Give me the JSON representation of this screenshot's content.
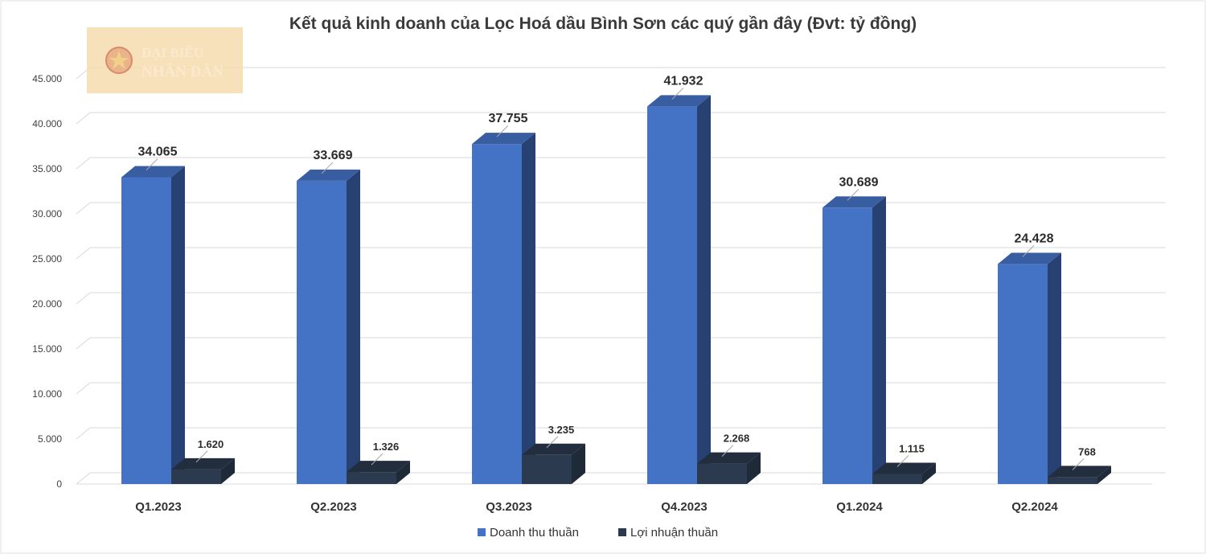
{
  "chart_data": {
    "type": "bar",
    "title": "Kết quả kinh doanh của Lọc Hoá dầu Bình Sơn các quý gần đây (Đvt: tỷ đồng)",
    "xlabel": "",
    "ylabel": "",
    "categories": [
      "Q1.2023",
      "Q2.2023",
      "Q3.2023",
      "Q4.2023",
      "Q1.2024",
      "Q2.2024"
    ],
    "series": [
      {
        "name": "Doanh thu thuần",
        "values": [
          34065,
          33669,
          37755,
          41932,
          30689,
          24428
        ],
        "labels": [
          "34.065",
          "33.669",
          "37.755",
          "41.932",
          "30.689",
          "24.428"
        ],
        "color": "#4472C4"
      },
      {
        "name": "Lợi nhuận thuần",
        "values": [
          1620,
          1326,
          3235,
          2268,
          1115,
          768
        ],
        "labels": [
          "1.620",
          "1.326",
          "3.235",
          "2.268",
          "1.115",
          "768"
        ],
        "color": "#2B3A4E"
      }
    ],
    "ylim": [
      0,
      45000
    ],
    "yticks": [
      0,
      5000,
      10000,
      15000,
      20000,
      25000,
      30000,
      35000,
      40000,
      45000
    ],
    "ytick_labels": [
      "0",
      "5.000",
      "10.000",
      "15.000",
      "20.000",
      "25.000",
      "30.000",
      "35.000",
      "40.000",
      "45.000"
    ],
    "grid": true,
    "legend": "bottom-center",
    "style": "3d-clustered-column"
  },
  "watermark": {
    "line1": "ĐẠI BIỂU",
    "line2": "NHÂN DÂN",
    "icon": "state-emblem-icon"
  }
}
